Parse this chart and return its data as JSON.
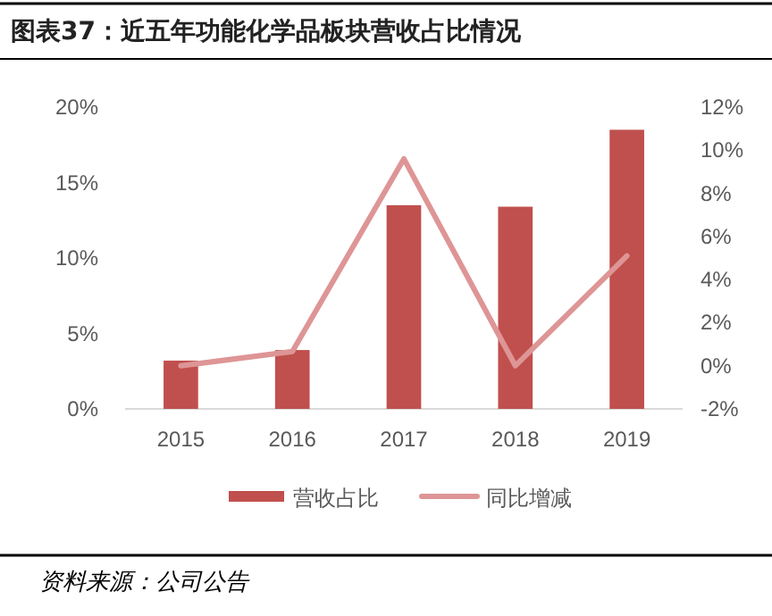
{
  "chart_data": {
    "type": "bar",
    "title": "图表37：近五年功能化学品板块营收占比情况",
    "categories": [
      "2015",
      "2016",
      "2017",
      "2018",
      "2019"
    ],
    "series": [
      {
        "name": "营收占比",
        "color": "#c0504d",
        "values": [
          3.2,
          3.9,
          13.5,
          13.4,
          18.5
        ]
      },
      {
        "name": "同比增减",
        "type": "line",
        "axis": "y2",
        "color": "#de9595",
        "values": [
          0.0,
          0.66,
          9.6,
          0.0,
          5.1
        ]
      }
    ],
    "ylim": [
      0,
      20
    ],
    "yticks": [
      {
        "value": 0,
        "label": "0%"
      },
      {
        "value": 5,
        "label": "5%"
      },
      {
        "value": 10,
        "label": "10%"
      },
      {
        "value": 15,
        "label": "15%"
      },
      {
        "value": 20,
        "label": "20%"
      }
    ],
    "y2lim": [
      -2,
      12
    ],
    "y2ticks": [
      {
        "value": -2,
        "label": "-2%"
      },
      {
        "value": 0,
        "label": "0%"
      },
      {
        "value": 2,
        "label": "2%"
      },
      {
        "value": 4,
        "label": "4%"
      },
      {
        "value": 6,
        "label": "6%"
      },
      {
        "value": 8,
        "label": "8%"
      },
      {
        "value": 10,
        "label": "10%"
      },
      {
        "value": 12,
        "label": "12%"
      }
    ],
    "legend": "bottom",
    "annotations": [
      "资料来源：公司公告"
    ]
  }
}
